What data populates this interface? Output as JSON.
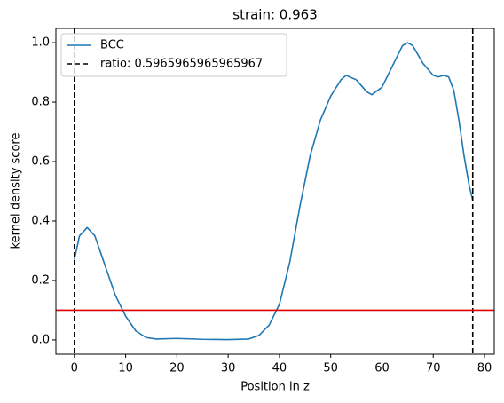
{
  "chart_data": {
    "type": "line",
    "title": "strain: 0.963",
    "xlabel": "Position in z",
    "ylabel": "kernel density score",
    "x": [
      0,
      1,
      2.5,
      4,
      6,
      8,
      10,
      12,
      14,
      16,
      20,
      25,
      30,
      34,
      36,
      38,
      40,
      42,
      44,
      46,
      48,
      50,
      52,
      53,
      55,
      57,
      58,
      60,
      62,
      64,
      65,
      66,
      68,
      70,
      71,
      72,
      73,
      74,
      75,
      76,
      77,
      77.7
    ],
    "series": [
      {
        "name": "BCC",
        "color": "#1f77b4",
        "values": [
          0.27,
          0.35,
          0.378,
          0.35,
          0.25,
          0.15,
          0.08,
          0.03,
          0.008,
          0.003,
          0.005,
          0.002,
          0.001,
          0.003,
          0.015,
          0.05,
          0.12,
          0.26,
          0.45,
          0.62,
          0.74,
          0.82,
          0.875,
          0.89,
          0.875,
          0.835,
          0.825,
          0.85,
          0.92,
          0.99,
          1.0,
          0.99,
          0.93,
          0.89,
          0.885,
          0.89,
          0.885,
          0.84,
          0.74,
          0.62,
          0.52,
          0.47
        ]
      }
    ],
    "vlines": {
      "name": "ratio: 0.5965965965965967",
      "color": "#000000",
      "x": [
        0,
        77.7
      ]
    },
    "hline": {
      "value": 0.1,
      "color": "#e00000"
    },
    "xlim": [
      -3.6,
      81.9
    ],
    "ylim": [
      -0.048,
      1.048
    ],
    "xticks": [
      0,
      10,
      20,
      30,
      40,
      50,
      60,
      70,
      80
    ],
    "yticks": [
      {
        "value": 0,
        "label": "0.0"
      },
      {
        "value": 0.2,
        "label": "0.2"
      },
      {
        "value": 0.4,
        "label": "0.4"
      },
      {
        "value": 0.6,
        "label": "0.6"
      },
      {
        "value": 0.8,
        "label": "0.8"
      },
      {
        "value": 1.0,
        "label": "1.0"
      }
    ],
    "legend": "upper left"
  }
}
